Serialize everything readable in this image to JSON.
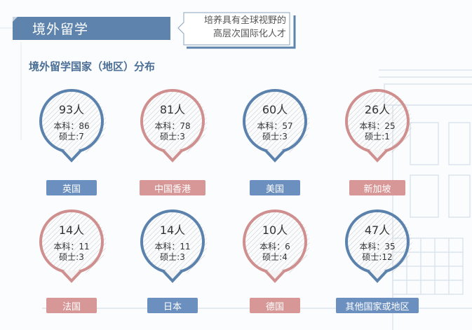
{
  "header": {
    "title": "境外留学",
    "tagline_line1": "培养具有全球视野的",
    "tagline_line2": "高层次国际化人才"
  },
  "section_title": "境外留学国家（地区）分布",
  "colors": {
    "blue": "#5b82ad",
    "pink": "#cf8f8f",
    "blue_label": "#6b8fbf",
    "pink_label": "#d79796"
  },
  "destinations": [
    {
      "name": "英国",
      "count": "93人",
      "bachelor": "本科：86",
      "master": "硕士:7",
      "color": "blue"
    },
    {
      "name": "中国香港",
      "count": "81人",
      "bachelor": "本科：78",
      "master": "硕士:3",
      "color": "pink"
    },
    {
      "name": "美国",
      "count": "60人",
      "bachelor": "本科：57",
      "master": "硕士:3",
      "color": "blue"
    },
    {
      "name": "新加坡",
      "count": "26人",
      "bachelor": "本科：25",
      "master": "硕士:1",
      "color": "pink"
    },
    {
      "name": "法国",
      "count": "14人",
      "bachelor": "本科：11",
      "master": "硕士:3",
      "color": "pink"
    },
    {
      "name": "日本",
      "count": "14人",
      "bachelor": "本科：11",
      "master": "硕士:3",
      "color": "blue"
    },
    {
      "name": "德国",
      "count": "10人",
      "bachelor": "本科：6",
      "master": "硕士:4",
      "color": "pink"
    },
    {
      "name": "其他国家或地区",
      "count": "47人",
      "bachelor": "本科：35",
      "master": "硕士:12",
      "color": "blue"
    }
  ]
}
